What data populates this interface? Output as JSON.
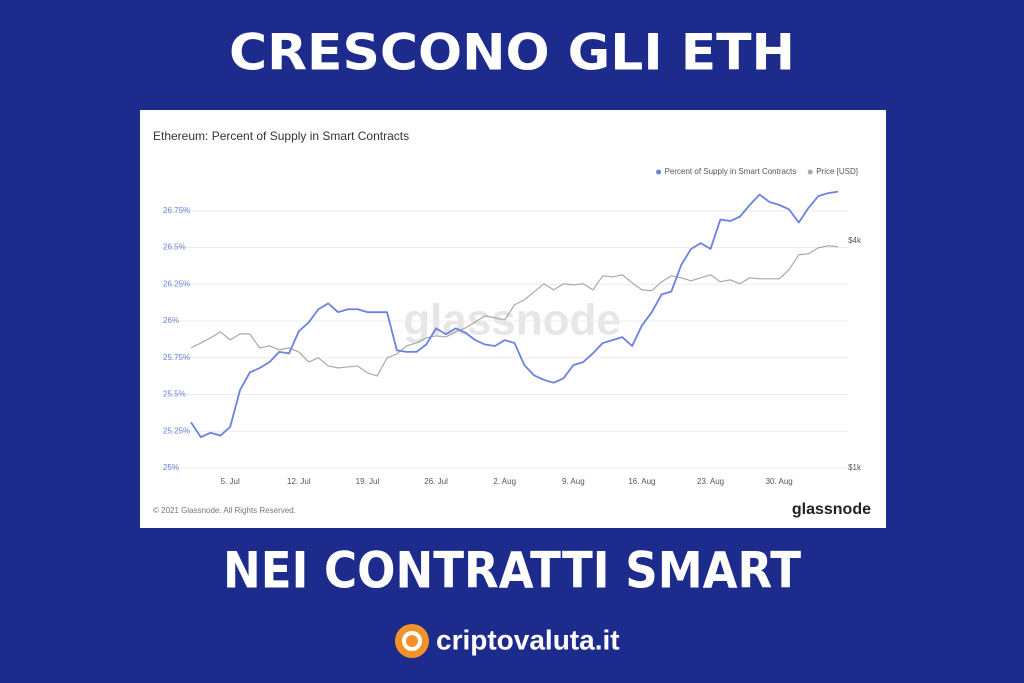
{
  "page": {
    "heading": "CRESCONO GLI ETH",
    "subheading": "NEI CONTRATTI SMART",
    "brand": "criptovaluta.it"
  },
  "chart_data": {
    "type": "line",
    "title": "Ethereum: Percent of Supply in Smart Contracts",
    "watermark": "glassnode",
    "footer": "© 2021 Glassnode. All Rights Reserved.",
    "logo": "glassnode",
    "legend": "top-right",
    "grid": true,
    "categories": [
      null,
      null,
      null,
      null,
      "5. Jul",
      null,
      null,
      null,
      null,
      null,
      null,
      "12. Jul",
      null,
      null,
      null,
      null,
      null,
      null,
      "19. Jul",
      null,
      null,
      null,
      null,
      null,
      null,
      "26. Jul",
      null,
      null,
      null,
      null,
      null,
      null,
      "2. Aug",
      null,
      null,
      null,
      null,
      null,
      null,
      "9. Aug",
      null,
      null,
      null,
      null,
      null,
      null,
      "16. Aug",
      null,
      null,
      null,
      null,
      null,
      null,
      "23. Aug",
      null,
      null,
      null,
      null,
      null,
      null,
      "30. Aug",
      null,
      null,
      null,
      null,
      null,
      null
    ],
    "series": [
      {
        "name": "Percent of Supply in Smart Contracts",
        "color": "#6b82e0",
        "values": [
          25.31,
          25.21,
          25.24,
          25.22,
          25.28,
          25.53,
          25.65,
          25.68,
          25.72,
          25.79,
          25.78,
          25.93,
          25.99,
          26.08,
          26.12,
          26.06,
          26.08,
          26.08,
          26.06,
          26.06,
          26.06,
          25.8,
          25.79,
          25.79,
          25.84,
          25.95,
          25.91,
          25.95,
          25.92,
          25.87,
          25.84,
          25.83,
          25.87,
          25.85,
          25.7,
          25.63,
          25.6,
          25.58,
          25.61,
          25.7,
          25.72,
          25.78,
          25.85,
          25.87,
          25.89,
          25.83,
          25.97,
          26.06,
          26.18,
          26.2,
          26.38,
          26.49,
          26.53,
          26.49,
          26.69,
          26.68,
          26.71,
          26.79,
          26.86,
          26.81,
          26.79,
          26.76,
          26.67,
          26.77,
          26.85,
          26.87,
          26.88
        ]
      },
      {
        "name": "Price [USD]",
        "color": "#a9a9a9",
        "axis": "y2",
        "values": [
          2585,
          2650,
          2717,
          2797,
          2691,
          2770,
          2770,
          2585,
          2612,
          2559,
          2585,
          2532,
          2400,
          2453,
          2347,
          2321,
          2334,
          2347,
          2255,
          2215,
          2453,
          2506,
          2612,
          2650,
          2717,
          2744,
          2730,
          2797,
          2849,
          2929,
          3008,
          2981,
          2955,
          3153,
          3219,
          3325,
          3431,
          3351,
          3431,
          3417,
          3431,
          3351,
          3536,
          3523,
          3550,
          3444,
          3351,
          3338,
          3457,
          3536,
          3510,
          3470,
          3510,
          3550,
          3457,
          3483,
          3431,
          3510,
          3497,
          3497,
          3497,
          3616,
          3814,
          3827,
          3906,
          3933,
          3919
        ]
      }
    ],
    "ylim": [
      25,
      27
    ],
    "yticks": [
      {
        "value": 25,
        "label": "25%"
      },
      {
        "value": 25.25,
        "label": "25.25%"
      },
      {
        "value": 25.5,
        "label": "25.5%"
      },
      {
        "value": 25.75,
        "label": "25.75%"
      },
      {
        "value": 26,
        "label": "26%"
      },
      {
        "value": 26.25,
        "label": "26.25%"
      },
      {
        "value": 26.5,
        "label": "26.5%"
      },
      {
        "value": 26.75,
        "label": "26.75%"
      }
    ],
    "y2lim": [
      1000,
      4880
    ],
    "y2ticks": [
      {
        "value": 1000,
        "label": "$1k"
      },
      {
        "value": 4000,
        "label": "$4k"
      }
    ]
  }
}
